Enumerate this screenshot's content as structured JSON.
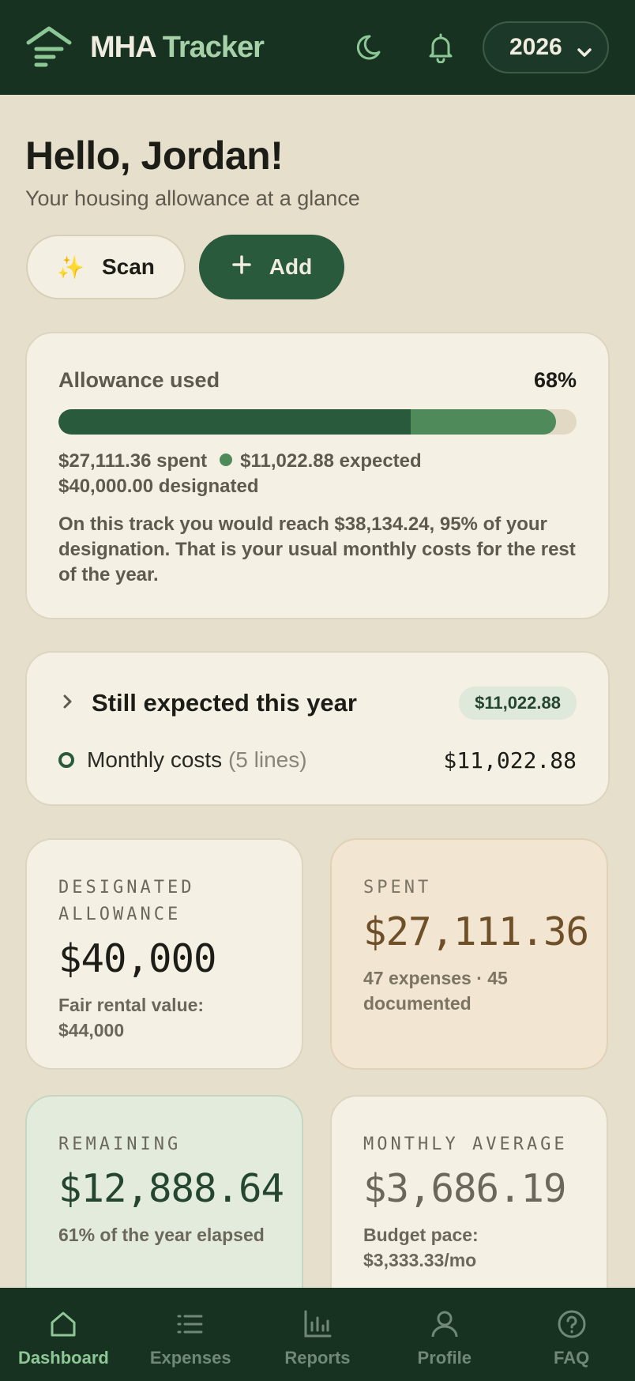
{
  "header": {
    "brand_part1": "MHA",
    "brand_part2": "Tracker",
    "year": "2026",
    "icons": [
      "moon-icon",
      "bell-icon"
    ]
  },
  "greeting": {
    "title": "Hello, Jordan!",
    "subtitle": "Your housing allowance at a glance"
  },
  "actions": {
    "scan_label": "Scan",
    "scan_icon": "✨",
    "add_label": "Add",
    "add_icon": "+"
  },
  "allowance": {
    "label": "Allowance used",
    "percent_label": "68%",
    "spent_fraction": 0.68,
    "expected_fraction": 0.28,
    "spent_text": "$27,111.36 spent",
    "expected_text": "$11,022.88 expected",
    "designated_text": "$40,000.00 designated",
    "note": "On this track you would reach $38,134.24, 95% of your designation. That is your usual monthly costs for the rest of the year."
  },
  "expected": {
    "title": "Still expected this year",
    "badge": "$11,022.88",
    "line_label": "Monthly costs",
    "line_count": "(5 lines)",
    "line_amount": "$11,022.88"
  },
  "stats": {
    "designated": {
      "label": "DESIGNATED ALLOWANCE",
      "value": "$40,000",
      "sub": "Fair rental value: $44,000"
    },
    "spent": {
      "label": "SPENT",
      "value": "$27,111.36",
      "sub": "47 expenses · 45 documented"
    },
    "remaining": {
      "label": "REMAINING",
      "value": "$12,888.64",
      "sub": "61% of the year elapsed"
    },
    "monthly": {
      "label": "MONTHLY AVERAGE",
      "value": "$3,686.19",
      "sub": "Budget pace: $3,333.33/mo"
    }
  },
  "nav": [
    {
      "label": "Dashboard",
      "icon": "home-icon",
      "active": true
    },
    {
      "label": "Expenses",
      "icon": "list-icon",
      "active": false
    },
    {
      "label": "Reports",
      "icon": "bar-chart-icon",
      "active": false
    },
    {
      "label": "Profile",
      "icon": "user-icon",
      "active": false
    },
    {
      "label": "FAQ",
      "icon": "help-icon",
      "active": false
    }
  ],
  "colors": {
    "header_bg": "#183222",
    "page_bg": "#e6dfcc",
    "accent": "#2a5a3c",
    "accent_light": "#4e8a5a",
    "nav_active": "#8ec796"
  }
}
